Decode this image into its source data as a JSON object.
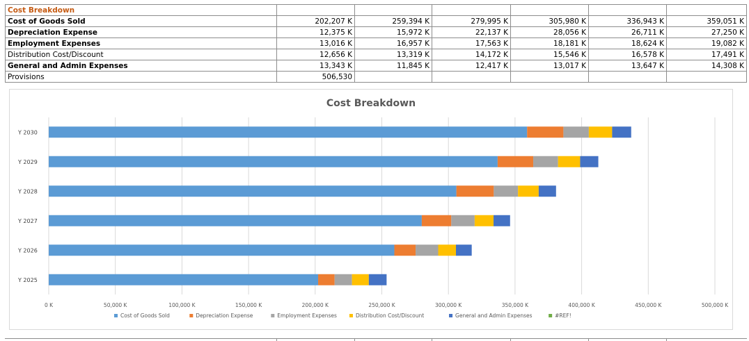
{
  "sheet": {
    "title": "Cost Breakdown",
    "rows": [
      {
        "label": "Cost of Goods Sold",
        "bold": true,
        "values": [
          "202,207 K",
          "259,394 K",
          "279,995 K",
          "305,980 K",
          "336,943 K",
          "359,051 K"
        ]
      },
      {
        "label": "Depreciation Expense",
        "bold": true,
        "values": [
          "12,375 K",
          "15,972 K",
          "22,137 K",
          "28,056 K",
          "26,711 K",
          "27,250 K"
        ]
      },
      {
        "label": "Employment Expenses",
        "bold": true,
        "values": [
          "13,016 K",
          "16,957 K",
          "17,563 K",
          "18,181 K",
          "18,624 K",
          "19,082 K"
        ]
      },
      {
        "label": "Distribution Cost/Discount",
        "bold": false,
        "values": [
          "12,656 K",
          "13,319 K",
          "14,172 K",
          "15,546 K",
          "16,578 K",
          "17,491 K"
        ]
      },
      {
        "label": "General and Admin Expenses",
        "bold": true,
        "values": [
          "13,343 K",
          "11,845 K",
          "12,417 K",
          "13,017 K",
          "13,647 K",
          "14,308 K"
        ]
      },
      {
        "label": "Provisions",
        "bold": false,
        "values": [
          "506,530",
          "",
          "",
          "",
          "",
          ""
        ]
      }
    ]
  },
  "chart_data": {
    "type": "bar",
    "orientation": "horizontal",
    "stacked": true,
    "title": "Cost Breakdown",
    "categories": [
      "Y 2030",
      "Y 2029",
      "Y 2028",
      "Y 2027",
      "Y 2026",
      "Y 2025"
    ],
    "series": [
      {
        "name": "Cost of Goods Sold",
        "color": "#5b9bd5",
        "values": [
          359051,
          336943,
          305980,
          279995,
          259394,
          202207
        ]
      },
      {
        "name": "Depreciation Expense",
        "color": "#ed7d31",
        "values": [
          27250,
          26711,
          28056,
          22137,
          15972,
          12375
        ]
      },
      {
        "name": "Employment Expenses",
        "color": "#a5a5a5",
        "values": [
          19082,
          18624,
          18181,
          17563,
          16957,
          13016
        ]
      },
      {
        "name": "Distribution Cost/Discount",
        "color": "#ffc000",
        "values": [
          17491,
          16578,
          15546,
          14172,
          13319,
          12656
        ]
      },
      {
        "name": "General and Admin Expenses",
        "color": "#4472c4",
        "values": [
          14308,
          13647,
          13017,
          12417,
          11845,
          13343
        ]
      },
      {
        "name": "#REF!",
        "color": "#70ad47",
        "values": [
          0,
          0,
          0,
          0,
          0,
          0
        ]
      }
    ],
    "xlim": [
      0,
      500000
    ],
    "xticks": [
      "0 K",
      "50,000 K",
      "100,000 K",
      "150,000 K",
      "200,000 K",
      "250,000 K",
      "300,000 K",
      "350,000 K",
      "400,000 K",
      "450,000 K",
      "500,000 K"
    ],
    "grid": true,
    "legend": "bottom"
  }
}
